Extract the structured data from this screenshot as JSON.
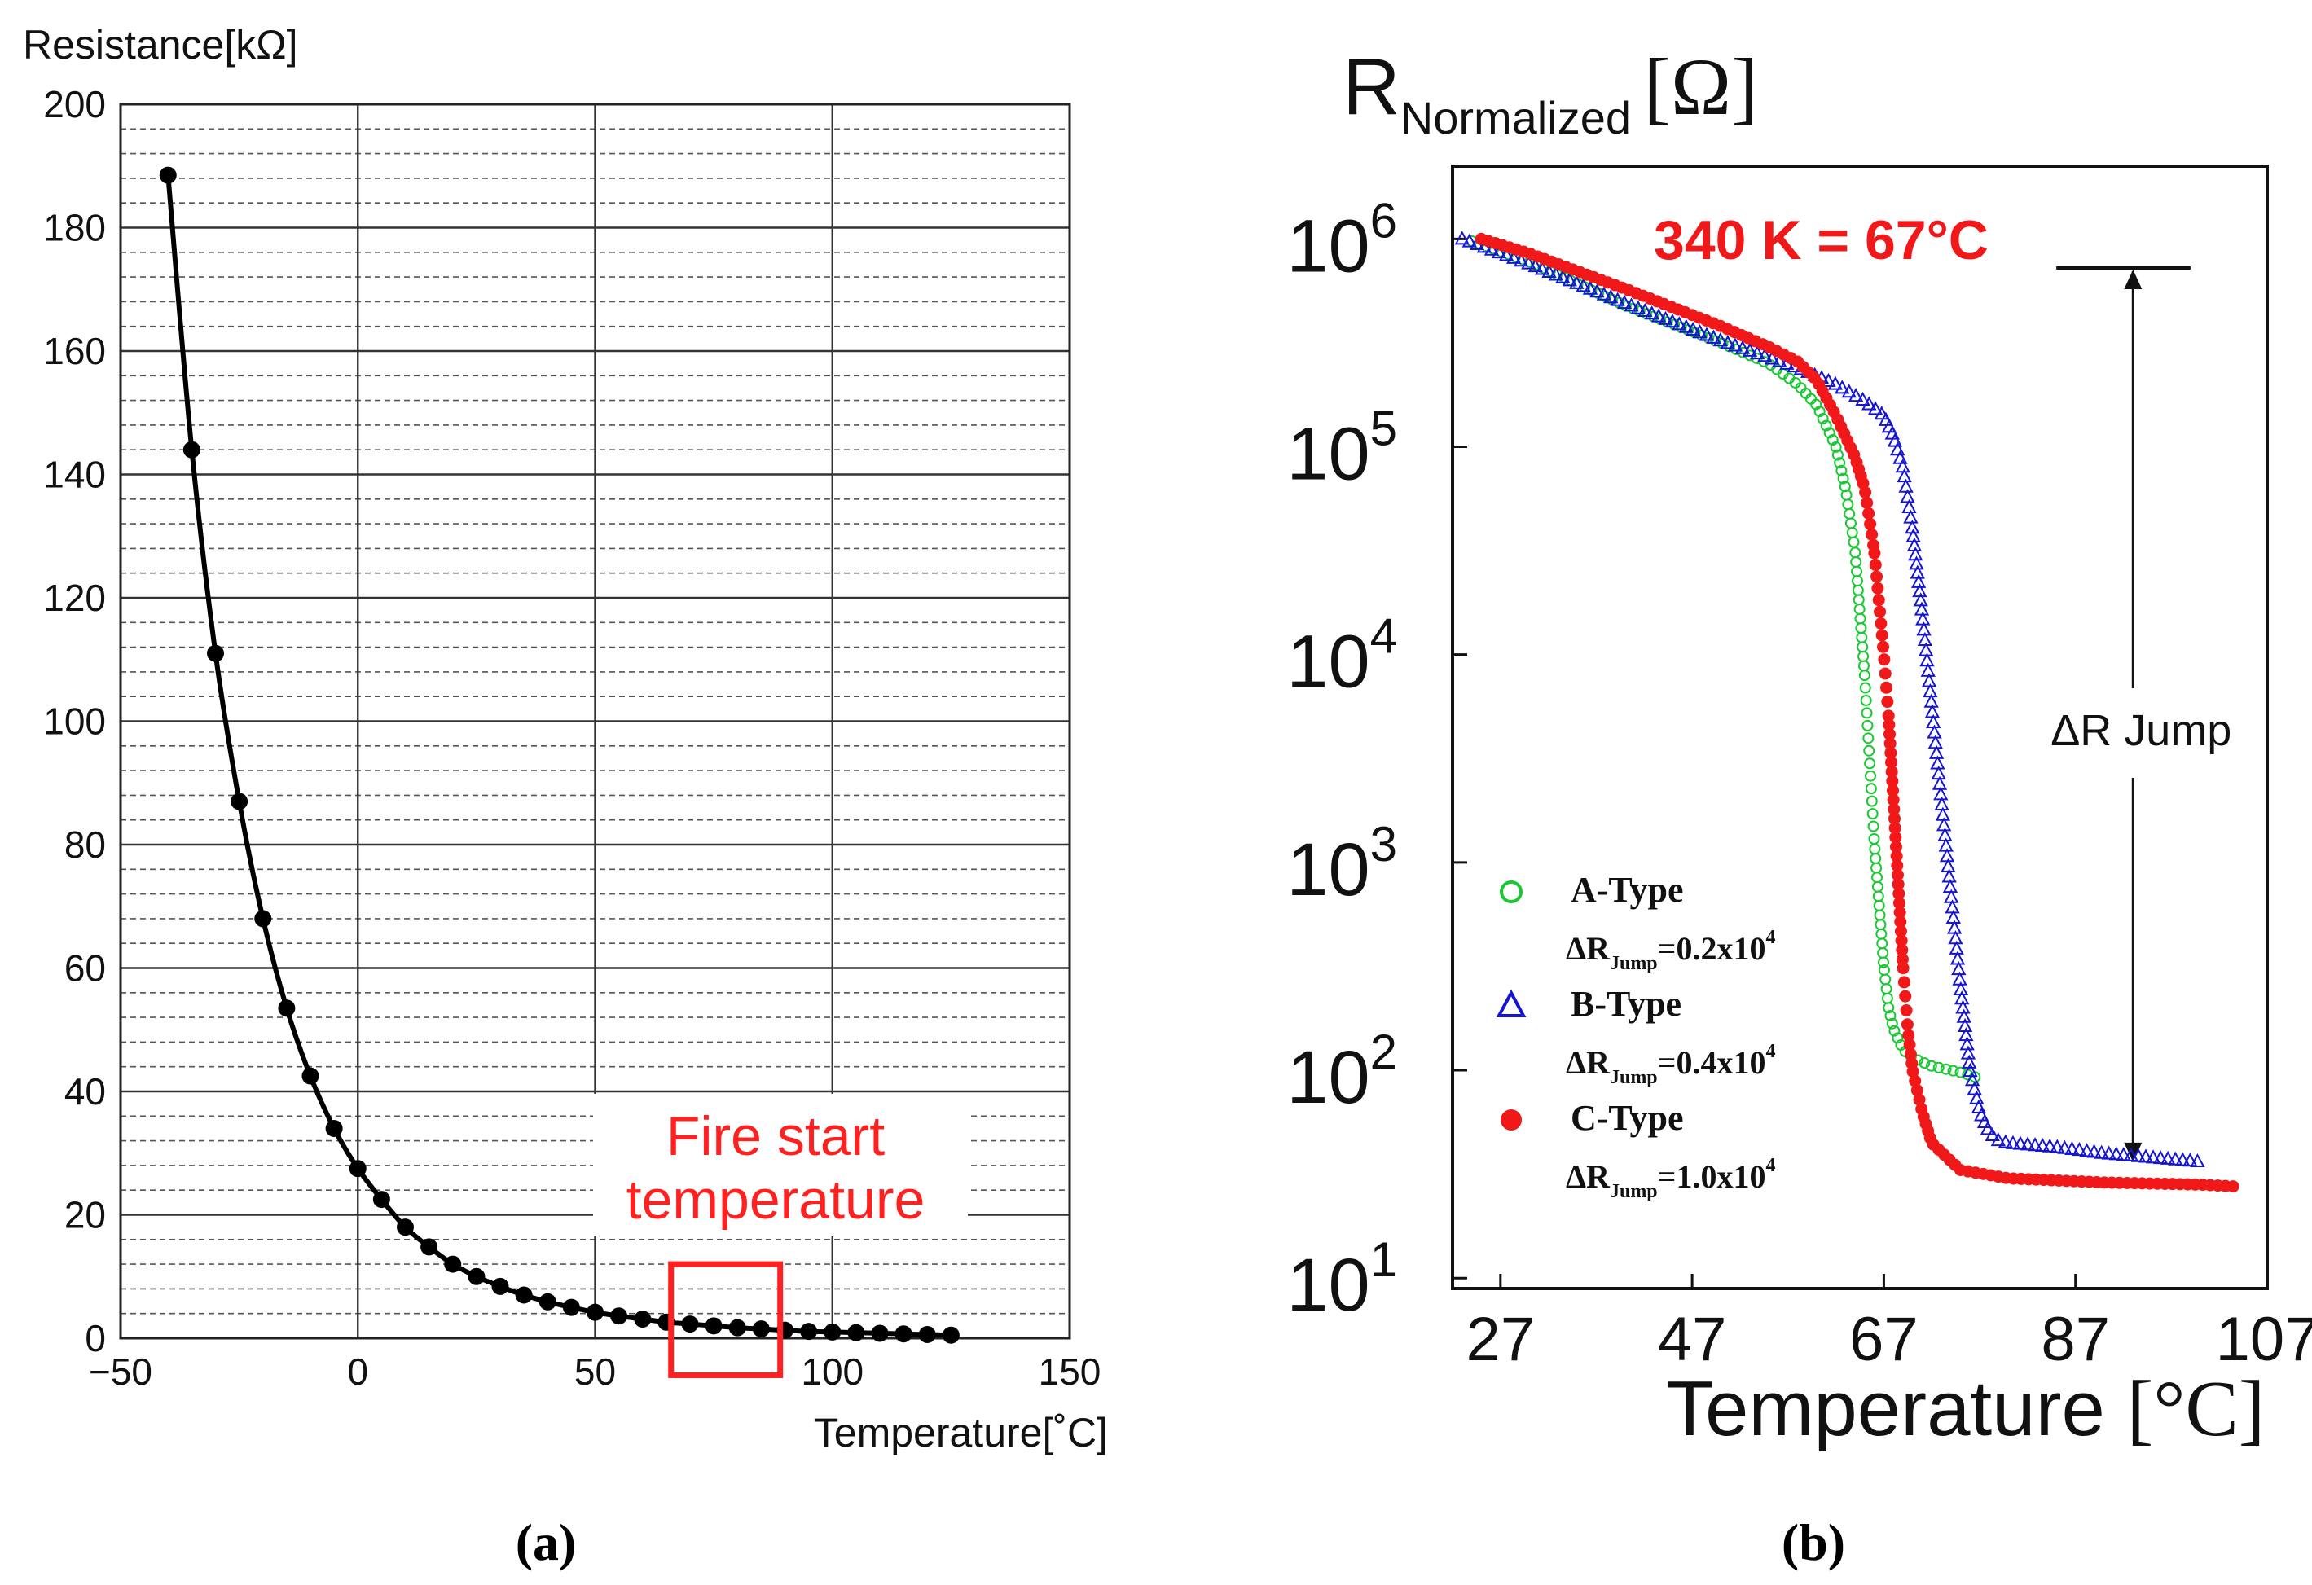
{
  "chart_data": [
    {
      "type": "line",
      "panel_label": "(a)",
      "title": "",
      "ylabel": "Resistance[kΩ]",
      "xlabel": "Temperature[˚C]",
      "xlim": [
        -50,
        150
      ],
      "ylim": [
        0,
        200
      ],
      "xticks": [
        "−50",
        "0",
        "50",
        "100",
        "150"
      ],
      "yticks": [
        "0",
        "20",
        "40",
        "60",
        "80",
        "100",
        "120",
        "140",
        "160",
        "180",
        "200"
      ],
      "grid": true,
      "annotation": {
        "line1": "Fire start",
        "line2": "temperature",
        "x_range": [
          66,
          89
        ],
        "y_range": [
          -6,
          12
        ],
        "color": "#ff2020"
      },
      "series": [
        {
          "color": "#000000",
          "x": [
            -40,
            -35,
            -30,
            -25,
            -20,
            -15,
            -10,
            -5,
            0,
            5,
            10,
            15,
            20,
            25,
            30,
            35,
            40,
            45,
            50,
            55,
            60,
            65,
            70,
            75,
            80,
            85,
            90,
            95,
            100,
            105,
            110,
            115,
            120,
            125
          ],
          "y": [
            188.5,
            144,
            111,
            87,
            68,
            53.5,
            42.5,
            34,
            27.5,
            22.5,
            18,
            14.8,
            12,
            10,
            8.4,
            7,
            5.9,
            5,
            4.2,
            3.6,
            3.1,
            2.6,
            2.3,
            2,
            1.7,
            1.5,
            1.3,
            1.1,
            1,
            0.9,
            0.8,
            0.7,
            0.6,
            0.5
          ]
        }
      ]
    },
    {
      "type": "scatter",
      "panel_label": "(b)",
      "title": "",
      "ylabel": "R",
      "ylabel_sub": "Normalized",
      "ylabel_unit": "[Ω]",
      "xlabel": "Temperature",
      "xlabel_unit": "[°C]",
      "xlim": [
        22,
        107
      ],
      "ylim_log10": [
        0.95,
        6.35
      ],
      "log_y": true,
      "xticks": [
        "27",
        "47",
        "67",
        "87",
        "107"
      ],
      "yticks": [
        {
          "base": "10",
          "exp": "1"
        },
        {
          "base": "10",
          "exp": "2"
        },
        {
          "base": "10",
          "exp": "3"
        },
        {
          "base": "10",
          "exp": "4"
        },
        {
          "base": "10",
          "exp": "5"
        },
        {
          "base": "10",
          "exp": "6"
        }
      ],
      "grid": false,
      "annotation_title": "340 K = 67°C",
      "jump": {
        "label": "ΔR Jump",
        "x": 93,
        "top_log10": 5.86,
        "bottom_log10": 1.55,
        "bar_x": [
          85,
          99
        ]
      },
      "legend": {
        "placement": "lower-left",
        "entries": [
          {
            "name": "A-Type",
            "delta_prefix": "ΔR",
            "delta_sub": "Jump",
            "delta_value": "=0.2x10",
            "delta_exp": "4",
            "color": "#19c832",
            "marker": "circle-open"
          },
          {
            "name": "B-Type",
            "delta_prefix": "ΔR",
            "delta_sub": "Jump",
            "delta_value": "=0.4x10",
            "delta_exp": "4",
            "color": "#1414d2",
            "marker": "triangle-open"
          },
          {
            "name": "C-Type",
            "delta_prefix": "ΔR",
            "delta_sub": "Jump",
            "delta_value": "=1.0x10",
            "delta_exp": "4",
            "color": "#f01818",
            "marker": "circle-filled"
          }
        ]
      },
      "series": [
        {
          "name": "A-Type",
          "color": "#19c832",
          "marker": "circle-open",
          "x": [
            24,
            30,
            40,
            50,
            55,
            58,
            60,
            62,
            63,
            64,
            64.5,
            65,
            65.5,
            66,
            66.5,
            67,
            67.5,
            68,
            69,
            70,
            72,
            75,
            77
          ],
          "y_log10": [
            5.99,
            5.89,
            5.68,
            5.5,
            5.4,
            5.3,
            5.2,
            5.0,
            4.8,
            4.5,
            4.2,
            3.9,
            3.5,
            3.1,
            2.8,
            2.5,
            2.3,
            2.2,
            2.1,
            2.06,
            2.02,
            1.99,
            1.96
          ]
        },
        {
          "name": "B-Type",
          "color": "#1414d2",
          "marker": "triangle-open",
          "x": [
            23,
            30,
            40,
            50,
            58,
            62,
            65,
            67,
            68,
            69,
            70,
            71,
            72,
            73,
            74,
            75,
            76,
            77,
            78,
            79,
            80,
            85,
            90,
            95,
            100
          ],
          "y_log10": [
            6.0,
            5.88,
            5.69,
            5.51,
            5.38,
            5.3,
            5.22,
            5.15,
            5.05,
            4.9,
            4.6,
            4.2,
            3.75,
            3.3,
            2.85,
            2.4,
            2.0,
            1.8,
            1.7,
            1.66,
            1.65,
            1.63,
            1.6,
            1.58,
            1.56
          ]
        },
        {
          "name": "C-Type",
          "color": "#f01818",
          "marker": "circle-filled",
          "x": [
            25,
            30,
            40,
            50,
            55,
            58,
            60,
            62,
            64,
            65,
            66,
            67,
            67.5,
            68,
            68.5,
            69,
            69.5,
            70,
            71,
            72,
            75,
            80,
            90,
            100,
            104
          ],
          "y_log10": [
            6.0,
            5.93,
            5.76,
            5.58,
            5.48,
            5.41,
            5.32,
            5.15,
            4.95,
            4.8,
            4.5,
            4.0,
            3.7,
            3.3,
            2.9,
            2.5,
            2.2,
            2.0,
            1.8,
            1.65,
            1.52,
            1.48,
            1.46,
            1.45,
            1.44
          ]
        }
      ]
    }
  ]
}
